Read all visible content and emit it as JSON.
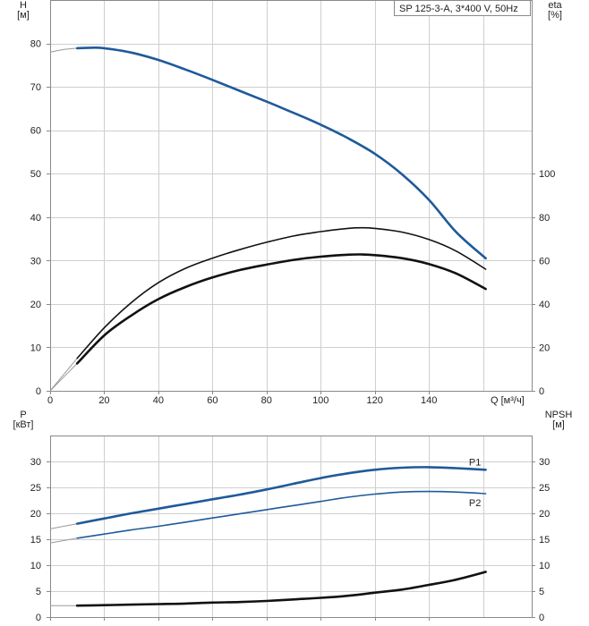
{
  "colors": {
    "blue": "#1f5a9a",
    "black": "#111111",
    "grid": "#cfcfcf"
  },
  "chart_data": [
    {
      "type": "line",
      "title": "SP 125-3-A, 3*400 V, 50Hz",
      "xlabel": "Q [м³/ч]",
      "ylabel": "H\n[м]",
      "y2label": "eta\n[%]",
      "xlim": [
        0,
        178
      ],
      "ylim": [
        0,
        90
      ],
      "y2lim": [
        0,
        180
      ],
      "xticks": [
        0,
        20,
        40,
        60,
        80,
        100,
        120,
        140
      ],
      "yticks": [
        0,
        10,
        20,
        30,
        40,
        50,
        60,
        70,
        80
      ],
      "y2ticks": [
        0,
        20,
        40,
        60,
        80,
        100
      ],
      "grid": true,
      "series": [
        {
          "axis": "left",
          "color": "#1f5a9a",
          "x": [
            0,
            5,
            10,
            15,
            20,
            30,
            40,
            50,
            60,
            70,
            80,
            90,
            100,
            110,
            120,
            130,
            140,
            150,
            161
          ],
          "y": [
            78,
            78.6,
            78.9,
            79,
            78.9,
            77.9,
            76.2,
            74,
            71.6,
            69.1,
            66.6,
            64,
            61.3,
            58.2,
            54.6,
            49.9,
            44,
            36.6,
            30.5
          ]
        },
        {
          "axis": "right",
          "color": "#111111",
          "x": [
            0,
            10,
            20,
            30,
            40,
            50,
            60,
            70,
            80,
            90,
            100,
            110,
            115,
            120,
            130,
            140,
            150,
            161
          ],
          "y": [
            0,
            15,
            29,
            40.6,
            49.8,
            56.4,
            61.1,
            65,
            68.4,
            71.3,
            73.3,
            74.8,
            75.1,
            74.8,
            73.1,
            69.7,
            64.4,
            56
          ]
        },
        {
          "axis": "right",
          "color": "#111111",
          "x": [
            0,
            10,
            20,
            30,
            40,
            50,
            60,
            70,
            80,
            90,
            100,
            110,
            115,
            120,
            130,
            140,
            150,
            161
          ],
          "y": [
            0,
            12.6,
            25.5,
            34.7,
            42.2,
            47.8,
            52.2,
            55.6,
            58.1,
            60.3,
            61.8,
            62.7,
            62.8,
            62.5,
            61.1,
            58.4,
            54.1,
            46.9
          ]
        }
      ]
    },
    {
      "type": "line",
      "xlabel": "",
      "ylabel": "P\n[кВт]",
      "y2label": "NPSH\n[м]",
      "xlim": [
        0,
        178
      ],
      "ylim": [
        0,
        35
      ],
      "y2lim": [
        0,
        35
      ],
      "xticks": [
        0,
        20,
        40,
        60,
        80,
        100,
        120,
        140
      ],
      "yticks": [
        0,
        5,
        10,
        15,
        20,
        25,
        30
      ],
      "y2ticks": [
        0,
        5,
        10,
        15,
        20,
        25,
        30
      ],
      "grid": true,
      "series": [
        {
          "name": "P1",
          "axis": "left",
          "color": "#1f5a9a",
          "x": [
            0,
            10,
            20,
            30,
            40,
            50,
            60,
            70,
            80,
            90,
            100,
            110,
            120,
            130,
            140,
            150,
            161
          ],
          "y": [
            17,
            18,
            19,
            20,
            20.9,
            21.8,
            22.7,
            23.6,
            24.6,
            25.7,
            26.8,
            27.7,
            28.4,
            28.8,
            28.9,
            28.7,
            28.4
          ]
        },
        {
          "name": "P2",
          "axis": "left",
          "color": "#1f5a9a",
          "x": [
            0,
            10,
            20,
            30,
            40,
            50,
            60,
            70,
            80,
            90,
            100,
            110,
            120,
            130,
            140,
            150,
            161
          ],
          "y": [
            14.3,
            15.2,
            16,
            16.8,
            17.5,
            18.3,
            19.1,
            19.9,
            20.7,
            21.5,
            22.3,
            23.1,
            23.7,
            24.1,
            24.2,
            24.1,
            23.8
          ]
        },
        {
          "axis": "right",
          "color": "#111111",
          "x": [
            0,
            10,
            20,
            30,
            40,
            50,
            60,
            70,
            80,
            90,
            100,
            110,
            120,
            130,
            140,
            150,
            161
          ],
          "y": [
            2.2,
            2.2,
            2.3,
            2.4,
            2.5,
            2.6,
            2.8,
            2.9,
            3.1,
            3.4,
            3.7,
            4.1,
            4.7,
            5.3,
            6.2,
            7.2,
            8.7
          ]
        }
      ]
    }
  ]
}
